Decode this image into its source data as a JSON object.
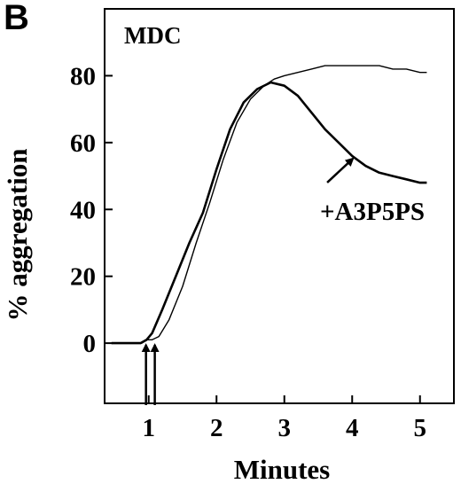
{
  "chart_data": {
    "type": "line",
    "panel_label": "B",
    "title": "MDC",
    "xlabel": "Minutes",
    "ylabel": "% aggregation",
    "xlim": [
      0.35,
      5.5
    ],
    "ylim": [
      -18,
      100
    ],
    "x_ticks": [
      1,
      2,
      3,
      4,
      5
    ],
    "y_ticks": [
      0,
      20,
      40,
      60,
      80
    ],
    "grid": false,
    "series": [
      {
        "name": "",
        "x": [
          0.45,
          0.7,
          0.9,
          0.97,
          1.05,
          1.15,
          1.3,
          1.5,
          1.7,
          1.9,
          2.1,
          2.3,
          2.5,
          2.7,
          2.85,
          3.0,
          3.2,
          3.4,
          3.6,
          3.8,
          4.0,
          4.2,
          4.4,
          4.6,
          4.8,
          5.0,
          5.1
        ],
        "y": [
          0,
          0,
          0,
          1,
          1,
          2,
          7,
          17,
          30,
          42,
          55,
          66,
          73,
          77,
          79,
          80,
          81,
          82,
          83,
          83,
          83,
          83,
          83,
          82,
          82,
          81,
          81
        ]
      },
      {
        "name": "",
        "x": [
          0.45,
          0.7,
          0.88,
          0.97,
          1.05,
          1.2,
          1.4,
          1.6,
          1.8,
          2.0,
          2.2,
          2.4,
          2.6,
          2.8,
          3.0,
          3.2,
          3.4,
          3.6,
          3.8,
          4.0,
          4.2,
          4.4,
          4.6,
          4.8,
          5.0,
          5.1
        ],
        "y": [
          0,
          0,
          0,
          1,
          3,
          10,
          20,
          30,
          39,
          52,
          64,
          72,
          76,
          78,
          77,
          74,
          69,
          64,
          60,
          56,
          53,
          51,
          50,
          49,
          48,
          48
        ]
      }
    ],
    "annotations": [
      {
        "text": "+A3P5PS",
        "arrow_to": [
          4.05,
          56
        ]
      }
    ],
    "arrows": [
      {
        "x": 0.96,
        "from_y": -18,
        "to_y": 0
      },
      {
        "x": 1.09,
        "from_y": -18,
        "to_y": 0
      }
    ]
  }
}
